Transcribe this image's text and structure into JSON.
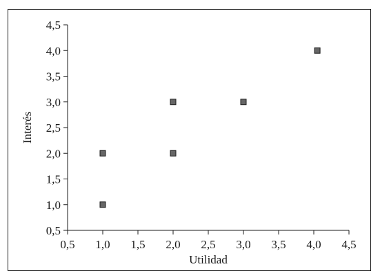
{
  "chart_data": {
    "type": "scatter",
    "title": "",
    "xlabel": "Utilidad",
    "ylabel": "Interés",
    "xlim": [
      0.5,
      4.5
    ],
    "ylim": [
      0.5,
      4.5
    ],
    "x_ticks": [
      "0,5",
      "1,0",
      "1,5",
      "2,0",
      "2,5",
      "3,0",
      "3,5",
      "4,0",
      "4,5"
    ],
    "y_ticks": [
      "0,5",
      "1,0",
      "1,5",
      "2,0",
      "2,5",
      "3,0",
      "3,5",
      "4,0",
      "4,5"
    ],
    "grid": false,
    "legend": "none",
    "marker": "square",
    "marker_color": "#666666",
    "marker_edge_color": "#1a1a1a",
    "series": [
      {
        "points": [
          {
            "x": 1.0,
            "y": 1.0
          },
          {
            "x": 1.0,
            "y": 2.0
          },
          {
            "x": 2.0,
            "y": 2.0
          },
          {
            "x": 2.0,
            "y": 3.0
          },
          {
            "x": 3.0,
            "y": 3.0
          },
          {
            "x": 4.05,
            "y": 4.0
          }
        ]
      }
    ]
  }
}
